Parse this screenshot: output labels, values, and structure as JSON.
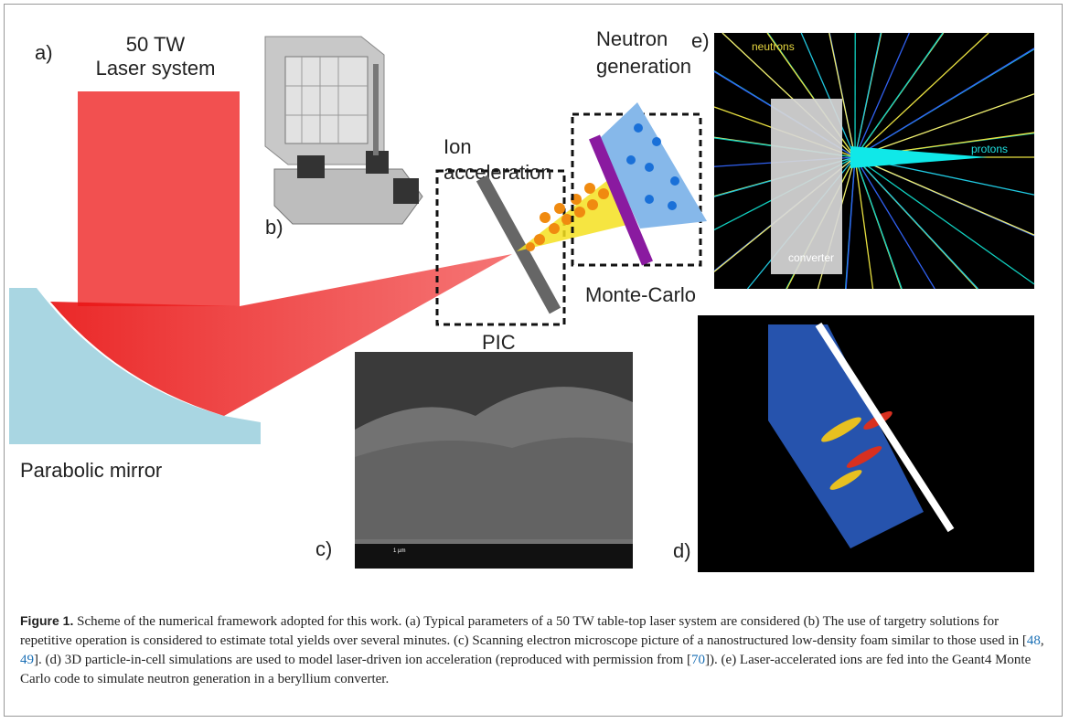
{
  "figure": {
    "panel_a": {
      "label": "a)",
      "title_line1": "50 TW",
      "title_line2": "Laser system",
      "mirror": "Parabolic mirror"
    },
    "panel_b": {
      "label": "b)"
    },
    "pic": {
      "line1": "Ion",
      "line2": "acceleration",
      "box": "PIC"
    },
    "neutron": {
      "line1": "Neutron",
      "line2": "generation",
      "box": "Monte-Carlo"
    },
    "panel_c": {
      "label": "c)",
      "scale": "1 µm"
    },
    "panel_d": {
      "label": "d)"
    },
    "panel_e": {
      "label": "e)",
      "neutrons": "neutrons",
      "protons": "protons",
      "converter": "converter"
    }
  },
  "caption": {
    "label": "Figure 1.",
    "text": [
      "Scheme of the numerical framework adopted for this work. (a) Typical parameters of a 50 TW table-top laser system are considered (b) The use of targetry solutions for repetitive operation is considered to estimate total yields over several minutes. (c) Scanning electron microscope picture of a nanostructured low-density foam similar to those used in [",
      ", ",
      "]. (d) 3D particle-in-cell simulations are used to model laser-driven ion acceleration (reproduced with permission from [",
      "]). (e) Laser-accelerated ions are fed into the Geant4 Monte Carlo code to simulate neutron generation in a beryllium converter."
    ],
    "refs": [
      "48",
      "49",
      "70"
    ]
  }
}
